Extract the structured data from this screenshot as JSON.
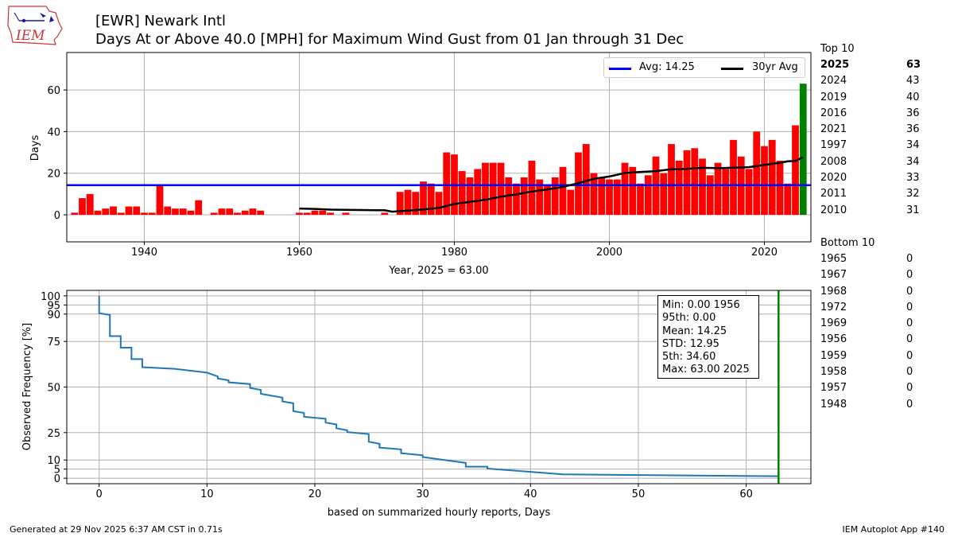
{
  "header": {
    "title_line1": "[EWR] Newark Intl",
    "title_line2": "Days At or Above 40.0 [MPH] for Maximum Wind Gust from 01 Jan through 31 Dec",
    "logo_text": "IEM"
  },
  "footer": {
    "generated": "Generated at 29 Nov 2025 6:37 AM CST in 0.71s",
    "app": "IEM Autoplot App #140"
  },
  "top10": {
    "heading": "Top 10",
    "rows": [
      {
        "year": "2025",
        "value": "63",
        "bold": true
      },
      {
        "year": "2024",
        "value": "43"
      },
      {
        "year": "2019",
        "value": "40"
      },
      {
        "year": "2016",
        "value": "36"
      },
      {
        "year": "2021",
        "value": "36"
      },
      {
        "year": "1997",
        "value": "34"
      },
      {
        "year": "2008",
        "value": "34"
      },
      {
        "year": "2020",
        "value": "33"
      },
      {
        "year": "2011",
        "value": "32"
      },
      {
        "year": "2010",
        "value": "31"
      }
    ]
  },
  "bottom10": {
    "heading": "Bottom 10",
    "rows": [
      {
        "year": "1965",
        "value": "0"
      },
      {
        "year": "1967",
        "value": "0"
      },
      {
        "year": "1968",
        "value": "0"
      },
      {
        "year": "1972",
        "value": "0"
      },
      {
        "year": "1969",
        "value": "0"
      },
      {
        "year": "1956",
        "value": "0"
      },
      {
        "year": "1959",
        "value": "0"
      },
      {
        "year": "1958",
        "value": "0"
      },
      {
        "year": "1957",
        "value": "0"
      },
      {
        "year": "1948",
        "value": "0"
      }
    ]
  },
  "stats_box": {
    "lines": [
      "Min: 0.00 1956",
      "95th: 0.00",
      "Mean: 14.25",
      "STD: 12.95",
      "5th: 34.60",
      "Max: 63.00 2025"
    ]
  },
  "legend": {
    "avg_label": "Avg: 14.25",
    "avg30_label": "30yr Avg"
  },
  "colors": {
    "bar": "#ff0000",
    "highlight_bar": "#008000",
    "avg_line": "#0000ff",
    "avg30_line": "#000000",
    "freq_line": "#1f77b4",
    "marker_line": "#008000",
    "grid": "#b0b0b0"
  },
  "chart_data": [
    {
      "type": "bar",
      "title": "Days At or Above 40.0 [MPH] for Maximum Wind Gust from 01 Jan through 31 Dec",
      "xlabel": "Year, 2025 = 63.00",
      "ylabel": "Days",
      "xlim": [
        1930,
        2026
      ],
      "ylim": [
        -13,
        78
      ],
      "xticks": [
        1940,
        1960,
        1980,
        2000,
        2020
      ],
      "yticks": [
        0,
        20,
        40,
        60
      ],
      "grid": true,
      "legend_position": "top-right",
      "years": [
        1931,
        1932,
        1933,
        1934,
        1935,
        1936,
        1937,
        1938,
        1939,
        1940,
        1941,
        1942,
        1943,
        1944,
        1945,
        1946,
        1947,
        1948,
        1949,
        1950,
        1951,
        1952,
        1953,
        1954,
        1955,
        1956,
        1957,
        1958,
        1959,
        1960,
        1961,
        1962,
        1963,
        1964,
        1965,
        1966,
        1967,
        1968,
        1969,
        1970,
        1971,
        1972,
        1973,
        1974,
        1975,
        1976,
        1977,
        1978,
        1979,
        1980,
        1981,
        1982,
        1983,
        1984,
        1985,
        1986,
        1987,
        1988,
        1989,
        1990,
        1991,
        1992,
        1993,
        1994,
        1995,
        1996,
        1997,
        1998,
        1999,
        2000,
        2001,
        2002,
        2003,
        2004,
        2005,
        2006,
        2007,
        2008,
        2009,
        2010,
        2011,
        2012,
        2013,
        2014,
        2015,
        2016,
        2017,
        2018,
        2019,
        2020,
        2021,
        2022,
        2023,
        2024,
        2025
      ],
      "values": [
        1,
        8,
        10,
        2,
        3,
        4,
        1,
        4,
        4,
        1,
        1,
        14,
        4,
        3,
        3,
        2,
        7,
        0,
        1,
        3,
        3,
        1,
        2,
        3,
        2,
        0,
        0,
        0,
        0,
        1,
        1,
        2,
        2,
        1,
        0,
        1,
        0,
        0,
        0,
        0,
        1,
        0,
        11,
        12,
        11,
        16,
        15,
        11,
        30,
        29,
        21,
        18,
        22,
        25,
        25,
        25,
        18,
        15,
        18,
        26,
        17,
        14,
        18,
        23,
        12,
        30,
        34,
        20,
        18,
        17,
        17,
        25,
        23,
        15,
        19,
        28,
        20,
        34,
        26,
        31,
        32,
        27,
        19,
        25,
        22,
        36,
        28,
        22,
        40,
        33,
        36,
        26,
        15,
        43,
        63
      ],
      "highlight_year": 2025,
      "series": [
        {
          "name": "Avg: 14.25",
          "value": 14.25
        },
        {
          "name": "30yr Avg",
          "x": [
            1960,
            1962,
            1964,
            1966,
            1968,
            1970,
            1971,
            1972,
            1974,
            1976,
            1978,
            1980,
            1982,
            1984,
            1986,
            1988,
            1990,
            1992,
            1994,
            1996,
            1998,
            2000,
            2002,
            2004,
            2006,
            2008,
            2010,
            2012,
            2014,
            2016,
            2018,
            2020,
            2022,
            2023,
            2024,
            2025
          ],
          "values": [
            3,
            2.8,
            2.5,
            2.4,
            2.3,
            2.2,
            2.2,
            1.5,
            2,
            2.6,
            3.3,
            5.2,
            6.2,
            7.2,
            8.7,
            9.8,
            11.2,
            12.2,
            13.4,
            15.2,
            17.3,
            18.4,
            20.1,
            20.6,
            21,
            21.9,
            22.1,
            22.6,
            22.4,
            22.6,
            22.9,
            24,
            25,
            25.7,
            25.9,
            27.7
          ]
        }
      ]
    },
    {
      "type": "line",
      "title": "",
      "xlabel": "based on summarized hourly reports, Days",
      "ylabel": "Observed Frequency [%]",
      "xlim": [
        -3,
        66
      ],
      "ylim": [
        -3,
        103
      ],
      "xticks": [
        0,
        10,
        20,
        30,
        40,
        50,
        60
      ],
      "yticks": [
        0,
        5,
        10,
        25,
        50,
        75,
        90,
        95,
        100
      ],
      "grid": true,
      "step_x": [
        0,
        0,
        1,
        1,
        2,
        2,
        3,
        3,
        4,
        4,
        7,
        10,
        11,
        11,
        12,
        12,
        14,
        14,
        15,
        15,
        17,
        17,
        18,
        18,
        19,
        19,
        21,
        21,
        22,
        22,
        23,
        23,
        25,
        25,
        26,
        26,
        28,
        28,
        30,
        30,
        34,
        34,
        36,
        36,
        43,
        63
      ],
      "step_y": [
        100,
        90.5,
        89.5,
        77.9,
        77.9,
        71.6,
        71.6,
        65.3,
        65.3,
        60.9,
        60.0,
        57.9,
        55.8,
        54.7,
        53.7,
        52.6,
        51.6,
        49.5,
        48.4,
        46.3,
        44.2,
        42.1,
        41.1,
        36.8,
        35.8,
        33.7,
        32.6,
        30.5,
        29.5,
        27.4,
        26.3,
        25.3,
        24.2,
        20.0,
        18.9,
        16.8,
        15.8,
        13.7,
        12.6,
        11.6,
        8.4,
        6.3,
        6.3,
        5.3,
        2.1,
        1.1
      ],
      "vertical_marker_x": 63
    }
  ]
}
